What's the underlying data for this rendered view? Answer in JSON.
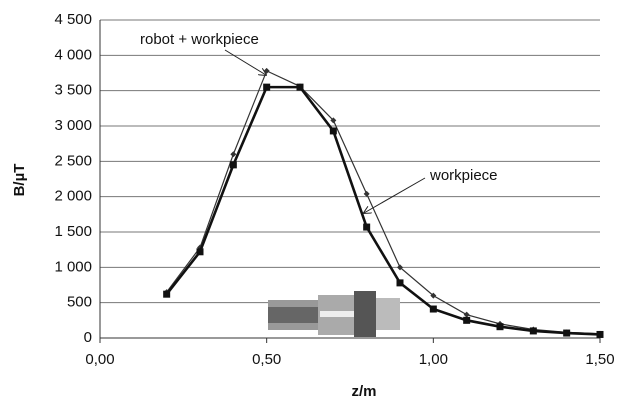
{
  "chart_data": {
    "type": "line",
    "x_label": "z/m",
    "y_label": "B/µT",
    "annotations": [
      "robot + workpiece",
      "workpiece"
    ],
    "x": [
      0.2,
      0.3,
      0.4,
      0.5,
      0.6,
      0.7,
      0.8,
      0.9,
      1.0,
      1.1,
      1.2,
      1.3,
      1.4,
      1.5
    ],
    "series": [
      {
        "name": "robot + workpiece",
        "color": "#333333",
        "values": [
          650,
          1280,
          2600,
          3780,
          3560,
          3080,
          2040,
          1000,
          600,
          330,
          200,
          120,
          80,
          60
        ]
      },
      {
        "name": "workpiece",
        "color": "#111111",
        "values": [
          620,
          1220,
          2450,
          3550,
          3550,
          2930,
          1570,
          780,
          410,
          250,
          160,
          100,
          70,
          50
        ]
      }
    ],
    "xlim": [
      0,
      1.5
    ],
    "xticks": [
      {
        "value": 0,
        "label": "0,00"
      },
      {
        "value": 0.5,
        "label": "0,50"
      },
      {
        "value": 1.0,
        "label": "1,00"
      },
      {
        "value": 1.5,
        "label": "1,50"
      }
    ],
    "ylim": [
      0,
      4500
    ],
    "yticks": [
      0,
      500,
      {
        "value": 1000,
        "label": "1 000"
      },
      {
        "value": 1500,
        "label": "1 500"
      },
      {
        "value": 2000,
        "label": "2 000"
      },
      {
        "value": 2500,
        "label": "2 500"
      },
      {
        "value": 3000,
        "label": "3 000"
      },
      {
        "value": 3500,
        "label": "3 500"
      },
      {
        "value": 4000,
        "label": "4 000"
      },
      {
        "value": 4500,
        "label": "4 500"
      }
    ],
    "grid": true
  }
}
